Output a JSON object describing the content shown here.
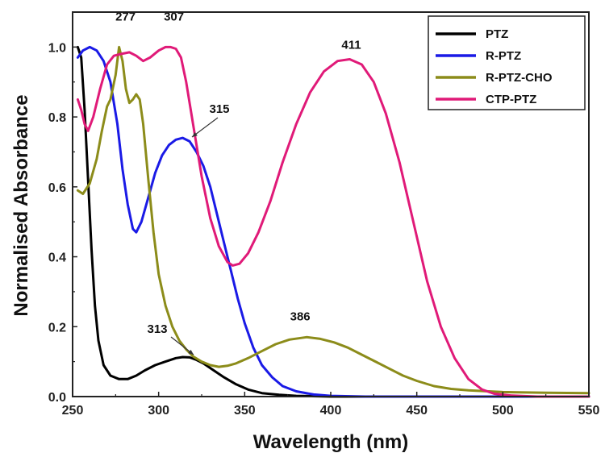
{
  "chart_data": {
    "type": "line",
    "title": "",
    "xlabel": "Wavelength (nm)",
    "ylabel": "Normalised Absorbance",
    "xlim": [
      250,
      550
    ],
    "ylim": [
      0.0,
      1.1
    ],
    "xticks": [
      250,
      300,
      350,
      400,
      450,
      500,
      550
    ],
    "xtick_labels": [
      "250",
      "300",
      "350",
      "400",
      "450",
      "500",
      "550"
    ],
    "yticks": [
      0.0,
      0.2,
      0.4,
      0.6,
      0.8,
      1.0
    ],
    "ytick_labels": [
      "0.0",
      "0.2",
      "0.4",
      "0.6",
      "0.8",
      "1.0"
    ],
    "grid": false,
    "legend_position": "top-right",
    "series": [
      {
        "name": "PTZ",
        "color": "#000000",
        "points": [
          [
            253,
            1.0
          ],
          [
            255,
            0.97
          ],
          [
            257,
            0.82
          ],
          [
            259,
            0.62
          ],
          [
            261,
            0.42
          ],
          [
            263,
            0.26
          ],
          [
            265,
            0.16
          ],
          [
            268,
            0.09
          ],
          [
            272,
            0.06
          ],
          [
            277,
            0.05
          ],
          [
            282,
            0.05
          ],
          [
            287,
            0.06
          ],
          [
            292,
            0.075
          ],
          [
            298,
            0.09
          ],
          [
            304,
            0.1
          ],
          [
            310,
            0.11
          ],
          [
            314,
            0.113
          ],
          [
            318,
            0.112
          ],
          [
            322,
            0.105
          ],
          [
            326,
            0.095
          ],
          [
            332,
            0.075
          ],
          [
            338,
            0.055
          ],
          [
            345,
            0.035
          ],
          [
            352,
            0.02
          ],
          [
            360,
            0.01
          ],
          [
            370,
            0.005
          ],
          [
            380,
            0.002
          ],
          [
            400,
            0.0
          ],
          [
            550,
            0.0
          ]
        ]
      },
      {
        "name": "R-PTZ",
        "color": "#1a1ae6",
        "points": [
          [
            253,
            0.97
          ],
          [
            256,
            0.99
          ],
          [
            260,
            1.0
          ],
          [
            264,
            0.99
          ],
          [
            268,
            0.96
          ],
          [
            272,
            0.9
          ],
          [
            276,
            0.78
          ],
          [
            279,
            0.65
          ],
          [
            282,
            0.55
          ],
          [
            285,
            0.48
          ],
          [
            287,
            0.47
          ],
          [
            290,
            0.5
          ],
          [
            294,
            0.57
          ],
          [
            298,
            0.64
          ],
          [
            302,
            0.69
          ],
          [
            306,
            0.72
          ],
          [
            310,
            0.735
          ],
          [
            314,
            0.74
          ],
          [
            318,
            0.73
          ],
          [
            322,
            0.7
          ],
          [
            326,
            0.66
          ],
          [
            330,
            0.6
          ],
          [
            334,
            0.52
          ],
          [
            338,
            0.44
          ],
          [
            342,
            0.36
          ],
          [
            346,
            0.28
          ],
          [
            350,
            0.21
          ],
          [
            355,
            0.14
          ],
          [
            360,
            0.09
          ],
          [
            366,
            0.055
          ],
          [
            372,
            0.03
          ],
          [
            380,
            0.015
          ],
          [
            390,
            0.006
          ],
          [
            400,
            0.002
          ],
          [
            420,
            0.0
          ],
          [
            550,
            0.0
          ]
        ]
      },
      {
        "name": "R-PTZ-CHO",
        "color": "#8c8c1a",
        "points": [
          [
            253,
            0.59
          ],
          [
            256,
            0.58
          ],
          [
            260,
            0.61
          ],
          [
            264,
            0.68
          ],
          [
            267,
            0.76
          ],
          [
            270,
            0.83
          ],
          [
            272,
            0.85
          ],
          [
            275,
            0.92
          ],
          [
            277,
            1.0
          ],
          [
            279,
            0.96
          ],
          [
            281,
            0.88
          ],
          [
            283,
            0.84
          ],
          [
            285,
            0.85
          ],
          [
            287,
            0.865
          ],
          [
            289,
            0.85
          ],
          [
            291,
            0.78
          ],
          [
            294,
            0.62
          ],
          [
            297,
            0.47
          ],
          [
            300,
            0.35
          ],
          [
            304,
            0.26
          ],
          [
            308,
            0.2
          ],
          [
            312,
            0.16
          ],
          [
            316,
            0.135
          ],
          [
            320,
            0.115
          ],
          [
            325,
            0.1
          ],
          [
            330,
            0.09
          ],
          [
            335,
            0.085
          ],
          [
            340,
            0.088
          ],
          [
            345,
            0.095
          ],
          [
            352,
            0.11
          ],
          [
            360,
            0.13
          ],
          [
            368,
            0.15
          ],
          [
            376,
            0.163
          ],
          [
            386,
            0.17
          ],
          [
            394,
            0.165
          ],
          [
            402,
            0.155
          ],
          [
            410,
            0.14
          ],
          [
            418,
            0.12
          ],
          [
            426,
            0.1
          ],
          [
            434,
            0.08
          ],
          [
            442,
            0.06
          ],
          [
            450,
            0.045
          ],
          [
            460,
            0.03
          ],
          [
            470,
            0.022
          ],
          [
            480,
            0.018
          ],
          [
            500,
            0.013
          ],
          [
            525,
            0.011
          ],
          [
            550,
            0.01
          ]
        ]
      },
      {
        "name": "CTP-PTZ",
        "color": "#e01a78",
        "points": [
          [
            253,
            0.85
          ],
          [
            255,
            0.82
          ],
          [
            257,
            0.78
          ],
          [
            259,
            0.76
          ],
          [
            262,
            0.8
          ],
          [
            266,
            0.88
          ],
          [
            270,
            0.95
          ],
          [
            274,
            0.975
          ],
          [
            278,
            0.98
          ],
          [
            283,
            0.985
          ],
          [
            287,
            0.975
          ],
          [
            291,
            0.96
          ],
          [
            295,
            0.97
          ],
          [
            300,
            0.99
          ],
          [
            304,
            1.0
          ],
          [
            307,
            1.0
          ],
          [
            310,
            0.995
          ],
          [
            313,
            0.97
          ],
          [
            316,
            0.9
          ],
          [
            320,
            0.78
          ],
          [
            325,
            0.63
          ],
          [
            330,
            0.51
          ],
          [
            335,
            0.43
          ],
          [
            340,
            0.385
          ],
          [
            343,
            0.375
          ],
          [
            347,
            0.38
          ],
          [
            352,
            0.41
          ],
          [
            358,
            0.47
          ],
          [
            365,
            0.56
          ],
          [
            372,
            0.67
          ],
          [
            380,
            0.78
          ],
          [
            388,
            0.87
          ],
          [
            396,
            0.93
          ],
          [
            404,
            0.96
          ],
          [
            411,
            0.965
          ],
          [
            418,
            0.95
          ],
          [
            425,
            0.9
          ],
          [
            432,
            0.81
          ],
          [
            440,
            0.67
          ],
          [
            448,
            0.5
          ],
          [
            456,
            0.33
          ],
          [
            464,
            0.2
          ],
          [
            472,
            0.11
          ],
          [
            480,
            0.05
          ],
          [
            488,
            0.02
          ],
          [
            495,
            0.008
          ],
          [
            505,
            0.003
          ],
          [
            520,
            0.0
          ],
          [
            550,
            0.0
          ]
        ]
      }
    ],
    "annotations": [
      {
        "text": "277",
        "x": 277,
        "y": 1.0
      },
      {
        "text": "307",
        "x": 307,
        "y": 1.0
      },
      {
        "text": "411",
        "x": 411,
        "y": 0.965
      },
      {
        "text": "315",
        "x": 315,
        "y": 0.74
      },
      {
        "text": "313",
        "x": 313,
        "y": 0.113
      },
      {
        "text": "386",
        "x": 386,
        "y": 0.17
      }
    ]
  }
}
